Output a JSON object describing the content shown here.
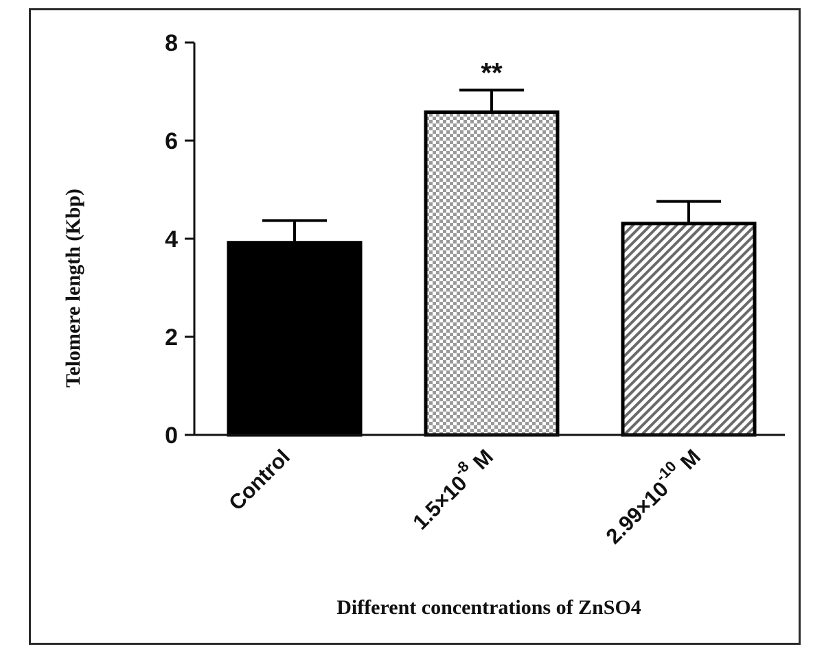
{
  "chart_data": {
    "type": "bar",
    "xlabel": "Different concentrations of ZnSO4",
    "ylabel": "Telomere length (Kbp)",
    "ylim": [
      0,
      8
    ],
    "yticks": [
      0,
      2,
      4,
      6,
      8
    ],
    "categories": [
      {
        "base": "Control",
        "exp": "",
        "tail": ""
      },
      {
        "base": "1.5×10",
        "exp": "-8",
        "tail": " M"
      },
      {
        "base": "2.99×10",
        "exp": "-10",
        "tail": " M"
      }
    ],
    "values": [
      3.92,
      6.58,
      4.31
    ],
    "errors": [
      0.45,
      0.45,
      0.45
    ],
    "fills": [
      "solid-black",
      "checkerboard",
      "diagonal-hatch"
    ],
    "annotations": [
      "",
      "**",
      ""
    ],
    "grid": false,
    "legend": "none"
  }
}
